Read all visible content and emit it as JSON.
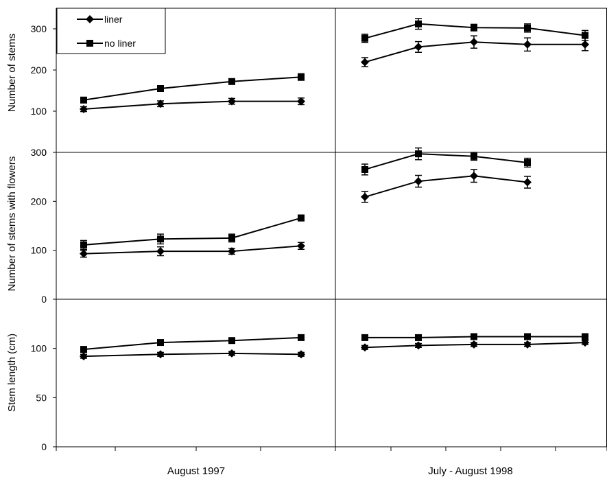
{
  "chart_data": {
    "type": "line",
    "columns": [
      {
        "label": "August 1997",
        "x": [
          1,
          2,
          3,
          4
        ]
      },
      {
        "label": "July - August 1998",
        "x": [
          1,
          2,
          3,
          4,
          5
        ]
      }
    ],
    "legend": {
      "position": "top-left",
      "entries": [
        {
          "name": "liner",
          "marker": "diamond"
        },
        {
          "name": "no liner",
          "marker": "square"
        }
      ]
    },
    "rows": [
      {
        "ylabel": "Number of stems",
        "ylim": [
          0,
          350
        ],
        "yticks": [
          0,
          100,
          200,
          300
        ],
        "panels": [
          {
            "series": [
              {
                "name": "liner",
                "values": [
                  105,
                  118,
                  124,
                  124
                ],
                "errors": [
                  6,
                  7,
                  7,
                  8
                ]
              },
              {
                "name": "no liner",
                "values": [
                  127,
                  155,
                  172,
                  183
                ],
                "errors": [
                  6,
                  7,
                  6,
                  8
                ]
              }
            ]
          },
          {
            "series": [
              {
                "name": "liner",
                "values": [
                  219,
                  256,
                  268,
                  262,
                  262
                ],
                "errors": [
                  11,
                  13,
                  15,
                  16,
                  15
                ]
              },
              {
                "name": "no liner",
                "values": [
                  277,
                  312,
                  303,
                  302,
                  284
                ],
                "errors": [
                  10,
                  13,
                  8,
                  10,
                  12
                ]
              }
            ]
          }
        ]
      },
      {
        "ylabel": "Number of stems with flowers",
        "ylim": [
          0,
          300
        ],
        "yticks": [
          0,
          100,
          200,
          300
        ],
        "panels": [
          {
            "series": [
              {
                "name": "liner",
                "values": [
                  93,
                  98,
                  98,
                  109
                ],
                "errors": [
                  7,
                  9,
                  6,
                  7
                ]
              },
              {
                "name": "no liner",
                "values": [
                  111,
                  123,
                  125,
                  166
                ],
                "errors": [
                  9,
                  10,
                  8,
                  6
                ]
              }
            ]
          },
          {
            "series": [
              {
                "name": "liner",
                "values": [
                  209,
                  241,
                  252,
                  239
                ],
                "errors": [
                  11,
                  12,
                  13,
                  12
                ]
              },
              {
                "name": "no liner",
                "values": [
                  265,
                  297,
                  292,
                  279
                ],
                "errors": [
                  11,
                  12,
                  8,
                  9
                ]
              }
            ]
          }
        ]
      },
      {
        "ylabel": "Stem length (cm)",
        "ylim": [
          0,
          150
        ],
        "yticks": [
          0,
          50,
          100
        ],
        "panels": [
          {
            "series": [
              {
                "name": "liner",
                "values": [
                  92,
                  94,
                  95,
                  94
                ],
                "errors": [
                  2,
                  2,
                  2,
                  2
                ]
              },
              {
                "name": "no liner",
                "values": [
                  99,
                  106,
                  108,
                  111
                ],
                "errors": [
                  2,
                  2,
                  2,
                  2
                ]
              }
            ]
          },
          {
            "series": [
              {
                "name": "liner",
                "values": [
                  101,
                  103,
                  104,
                  104,
                  106
                ],
                "errors": [
                  2,
                  2,
                  2,
                  2,
                  2
                ]
              },
              {
                "name": "no liner",
                "values": [
                  111,
                  111,
                  112,
                  112,
                  112
                ],
                "errors": [
                  2,
                  2,
                  2,
                  2,
                  2
                ]
              }
            ]
          }
        ]
      }
    ],
    "grid": false
  }
}
